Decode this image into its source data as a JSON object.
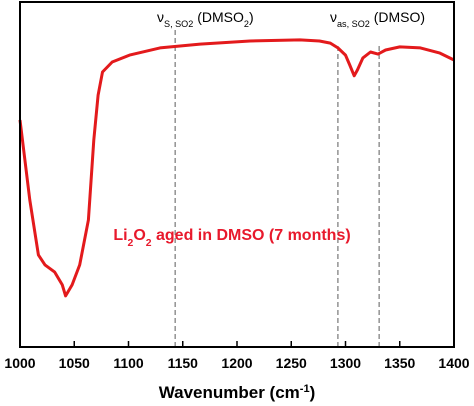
{
  "chart_data": {
    "type": "line",
    "x": [
      1000,
      1009,
      1017,
      1023,
      1032,
      1039,
      1042,
      1048,
      1055,
      1063,
      1068,
      1072,
      1076,
      1085,
      1101,
      1129,
      1166,
      1212,
      1258,
      1276,
      1286,
      1293,
      1300,
      1304,
      1308,
      1311,
      1316,
      1323,
      1330,
      1337,
      1350,
      1369,
      1387,
      1400
    ],
    "values": [
      65.8,
      42.6,
      26.7,
      23.8,
      21.7,
      18,
      14.8,
      18,
      23.8,
      36.8,
      60,
      73,
      79.7,
      82.6,
      84.6,
      86.7,
      87.8,
      88.7,
      89,
      88.7,
      88.1,
      86.7,
      84.6,
      81.7,
      78.6,
      80.3,
      83.8,
      85.5,
      84.9,
      86.1,
      87,
      86.7,
      85.2,
      83.2
    ],
    "color": "#e31a1c",
    "xlim": [
      1000,
      1400
    ],
    "xticks": [
      1000,
      1050,
      1100,
      1150,
      1200,
      1250,
      1300,
      1350,
      1400
    ],
    "ylim": [
      0,
      100
    ],
    "x_label": [
      "Wavenumber (cm",
      "-1",
      ")"
    ],
    "x_label_script": "sup",
    "markers": [
      1143,
      1293,
      1331
    ],
    "annotations": [
      [
        "ν",
        "S, SO2",
        " (DMSO",
        "2",
        ")"
      ],
      [
        "ν",
        "as, SO2",
        " (DMSO)"
      ]
    ],
    "annotation_script": "sub",
    "label": [
      "Li",
      "2",
      "O",
      "2",
      " aged in DMSO (7 months)"
    ],
    "label_color": "#e8192c",
    "label_script": "sub"
  }
}
